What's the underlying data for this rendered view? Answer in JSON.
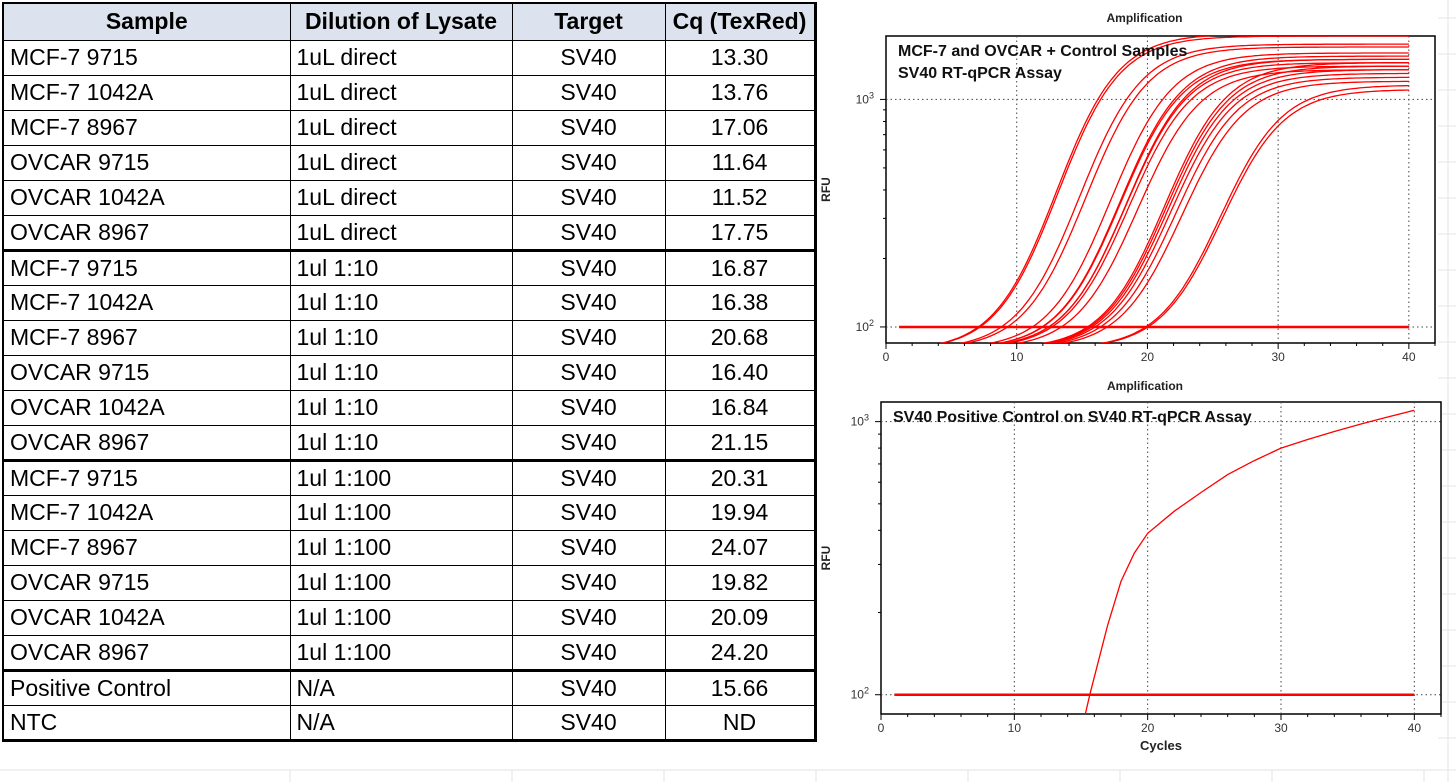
{
  "table": {
    "headers": [
      "Sample",
      "Dilution of Lysate",
      "Target",
      "Cq (TexRed)"
    ],
    "rows": [
      [
        "MCF-7 9715",
        "1uL direct",
        "SV40",
        "13.30"
      ],
      [
        "MCF-7 1042A",
        "1uL direct",
        "SV40",
        "13.76"
      ],
      [
        "MCF-7 8967",
        "1uL direct",
        "SV40",
        "17.06"
      ],
      [
        "OVCAR 9715",
        "1uL direct",
        "SV40",
        "11.64"
      ],
      [
        "OVCAR 1042A",
        "1uL direct",
        "SV40",
        "11.52"
      ],
      [
        "OVCAR 8967",
        "1uL direct",
        "SV40",
        "17.75"
      ],
      [
        "MCF-7 9715",
        "1ul 1:10",
        "SV40",
        "16.87"
      ],
      [
        "MCF-7 1042A",
        "1ul 1:10",
        "SV40",
        "16.38"
      ],
      [
        "MCF-7 8967",
        "1ul 1:10",
        "SV40",
        "20.68"
      ],
      [
        "OVCAR 9715",
        "1ul 1:10",
        "SV40",
        "16.40"
      ],
      [
        "OVCAR 1042A",
        "1ul 1:10",
        "SV40",
        "16.84"
      ],
      [
        "OVCAR 8967",
        "1ul 1:10",
        "SV40",
        "21.15"
      ],
      [
        "MCF-7 9715",
        "1ul 1:100",
        "SV40",
        "20.31"
      ],
      [
        "MCF-7 1042A",
        "1ul 1:100",
        "SV40",
        "19.94"
      ],
      [
        "MCF-7 8967",
        "1ul 1:100",
        "SV40",
        "24.07"
      ],
      [
        "OVCAR 9715",
        "1ul 1:100",
        "SV40",
        "19.82"
      ],
      [
        "OVCAR 1042A",
        "1ul 1:100",
        "SV40",
        "20.09"
      ],
      [
        "OVCAR 8967",
        "1ul 1:100",
        "SV40",
        "24.20"
      ],
      [
        "Positive Control",
        "N/A",
        "SV40",
        "15.66"
      ],
      [
        "NTC",
        "N/A",
        "SV40",
        "ND"
      ]
    ]
  },
  "chart_data": [
    {
      "type": "line",
      "title": "Amplification",
      "annotation": [
        "MCF-7 and OVCAR + Control Samples",
        "SV40 RT-qPCR Assay"
      ],
      "xlabel": "",
      "ylabel": "RFU",
      "xlim": [
        0,
        42
      ],
      "ylim": [
        85,
        1900
      ],
      "yscale": "log",
      "x_ticks": [
        "0",
        "10",
        "20",
        "30",
        "40"
      ],
      "y_ticks": [
        {
          "base": "10",
          "exp": "2",
          "value": 100
        },
        {
          "base": "10",
          "exp": "3",
          "value": 1000
        }
      ],
      "grid": true,
      "color": "#ff0000",
      "threshold": {
        "value": 100,
        "x_range": [
          1,
          40
        ]
      },
      "series_shape": {
        "x_start": 1,
        "x_end": 40,
        "baseline": 80,
        "amplitude_multiplier": 1.9,
        "cq_offset": 1.5,
        "growth_rate": 0.42
      },
      "series": [
        {
          "cq": 11.52,
          "end": 1950
        },
        {
          "cq": 11.64,
          "end": 1900
        },
        {
          "cq": 13.3,
          "end": 1750
        },
        {
          "cq": 13.76,
          "end": 1700
        },
        {
          "cq": 15.66,
          "end": 1600
        },
        {
          "cq": 16.38,
          "end": 1550
        },
        {
          "cq": 16.4,
          "end": 1500
        },
        {
          "cq": 16.84,
          "end": 1450
        },
        {
          "cq": 16.87,
          "end": 1500
        },
        {
          "cq": 17.06,
          "end": 1400
        },
        {
          "cq": 17.75,
          "end": 1350
        },
        {
          "cq": 19.82,
          "end": 1450
        },
        {
          "cq": 19.94,
          "end": 1400
        },
        {
          "cq": 20.09,
          "end": 1350
        },
        {
          "cq": 20.31,
          "end": 1300
        },
        {
          "cq": 20.68,
          "end": 1250
        },
        {
          "cq": 21.15,
          "end": 1200
        },
        {
          "cq": 24.07,
          "end": 1150
        },
        {
          "cq": 24.2,
          "end": 1100
        }
      ]
    },
    {
      "type": "line",
      "title": "Amplification",
      "annotation": [
        "SV40 Positive Control on SV40 RT-qPCR Assay"
      ],
      "xlabel": "Cycles",
      "ylabel": "RFU",
      "xlim": [
        0,
        42
      ],
      "ylim": [
        85,
        1180
      ],
      "yscale": "log",
      "x_ticks": [
        "0",
        "10",
        "20",
        "30",
        "40"
      ],
      "y_ticks": [
        {
          "base": "10",
          "exp": "2",
          "value": 100
        },
        {
          "base": "10",
          "exp": "3",
          "value": 1000
        }
      ],
      "grid": true,
      "color": "#ff0000",
      "threshold": {
        "value": 100,
        "x_range": [
          1,
          40
        ]
      },
      "series": [
        {
          "name": "Positive Control",
          "points": [
            [
              15.2,
              80
            ],
            [
              15.66,
              100
            ],
            [
              17,
              180
            ],
            [
              18,
              260
            ],
            [
              19,
              330
            ],
            [
              20,
              390
            ],
            [
              22,
              470
            ],
            [
              24,
              550
            ],
            [
              26,
              640
            ],
            [
              28,
              720
            ],
            [
              30,
              800
            ],
            [
              32,
              860
            ],
            [
              34,
              920
            ],
            [
              36,
              980
            ],
            [
              38,
              1040
            ],
            [
              40,
              1100
            ]
          ]
        }
      ]
    }
  ]
}
